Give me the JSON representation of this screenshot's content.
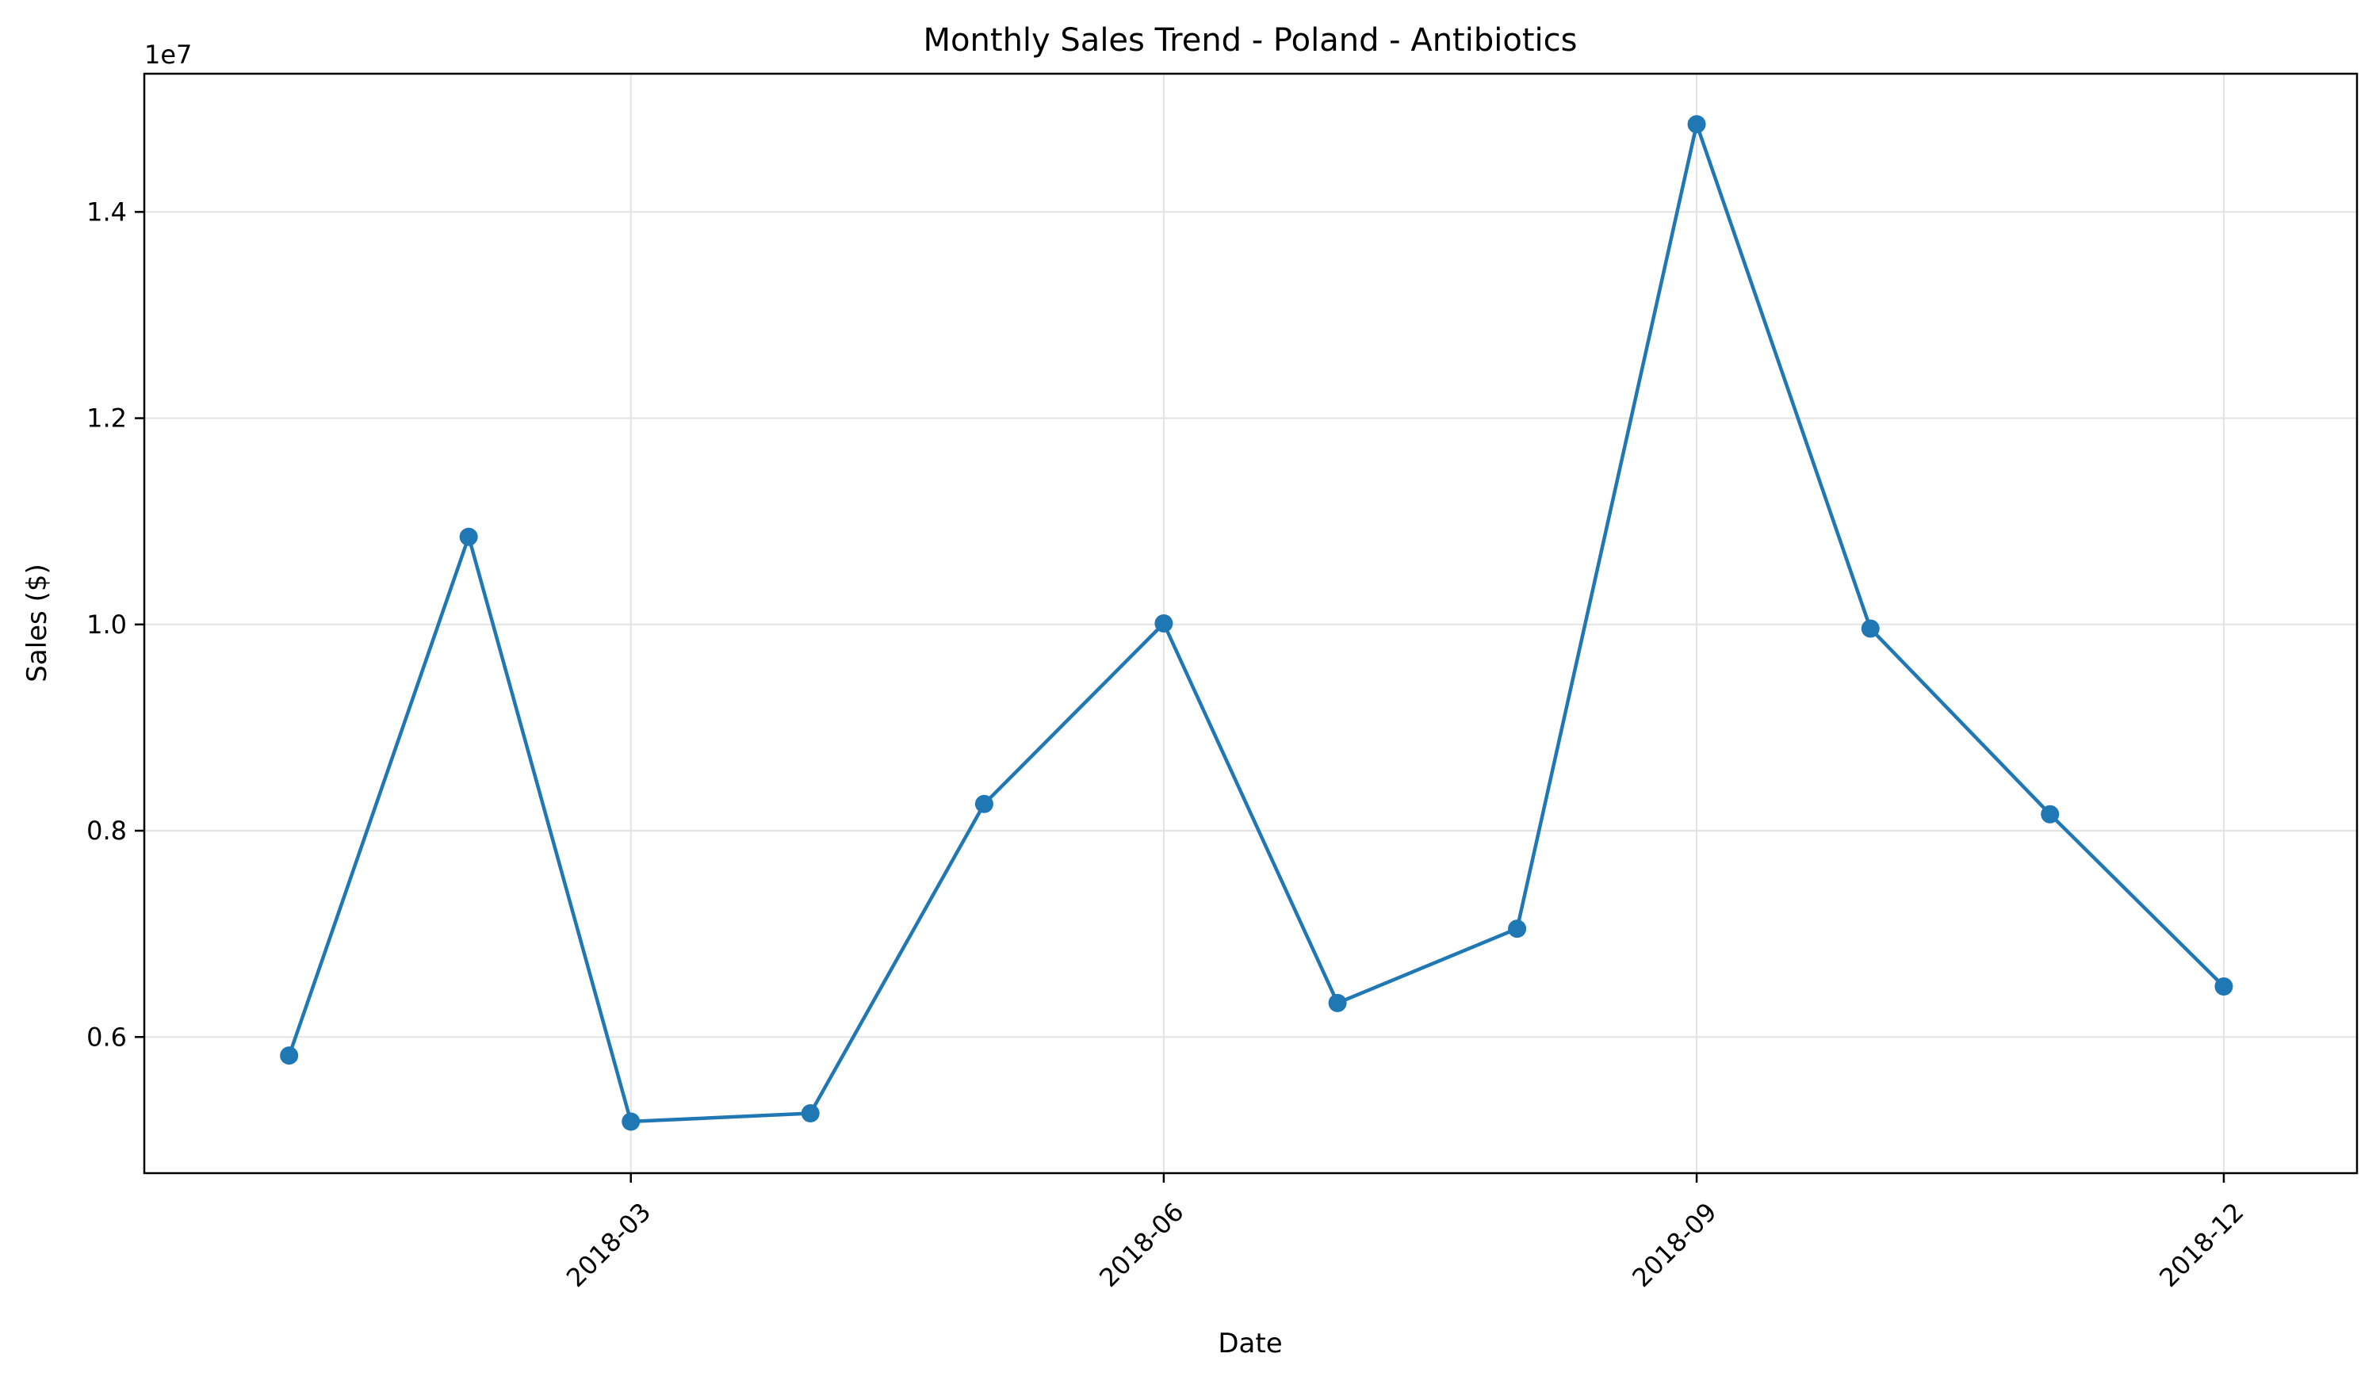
{
  "chart_data": {
    "type": "line",
    "title": "Monthly Sales Trend - Poland - Antibiotics",
    "xlabel": "Date",
    "ylabel": "Sales ($)",
    "y_offset_label": "1e7",
    "x_tick_labels": [
      "2018-03",
      "2018-06",
      "2018-09",
      "2018-12"
    ],
    "x_tick_dates": [
      "2018-03-01",
      "2018-06-01",
      "2018-09-01",
      "2018-12-01"
    ],
    "y_tick_labels": [
      "0.6",
      "0.8",
      "1.0",
      "1.2",
      "1.4"
    ],
    "y_tick_values": [
      6000000,
      8000000,
      10000000,
      12000000,
      14000000
    ],
    "xlim": [
      "2017-12-07",
      "2018-12-24"
    ],
    "ylim": [
      4680000,
      15340000
    ],
    "grid": true,
    "series": [
      {
        "color": "#1f77b4",
        "marker": "circle",
        "x": [
          "2018-01-01",
          "2018-02-01",
          "2018-03-01",
          "2018-04-01",
          "2018-05-01",
          "2018-06-01",
          "2018-07-01",
          "2018-08-01",
          "2018-09-01",
          "2018-10-01",
          "2018-11-01",
          "2018-12-01"
        ],
        "values": [
          5820000,
          10850000,
          5180000,
          5260000,
          8260000,
          10010000,
          6330000,
          7050000,
          14850000,
          9960000,
          8160000,
          6490000
        ]
      }
    ]
  }
}
